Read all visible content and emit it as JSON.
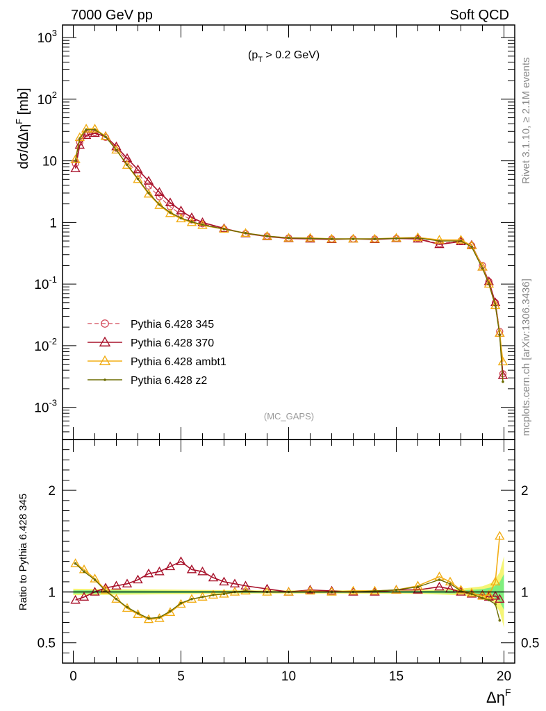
{
  "header": {
    "left": "7000 GeV pp",
    "right": "Soft QCD",
    "cut": "(p_T > 0.2 GeV)",
    "watermark": "(MC_GAPS)",
    "side_top": "Rivet 3.1.10, ≥ 2.1M events",
    "side_bottom": "mcplots.cern.ch [arXiv:1306.3436]"
  },
  "colors": {
    "p345": "#d24858",
    "p370": "#a8122b",
    "ambt1": "#f2ad15",
    "z2": "#6c6c00",
    "band_yellow": "#f5f575",
    "band_green": "#7fef7f"
  },
  "chart_data": [
    {
      "type": "line",
      "panel": "main",
      "ylabel": "dσ/dΔη^F [mb]",
      "yscale": "log",
      "ylim": [
        0.0003,
        1600
      ],
      "xlim": [
        -0.5,
        20.5
      ],
      "yticks": [
        "10^-3",
        "10^-2",
        "10^-1",
        "1",
        "10",
        "10^2",
        "10^3"
      ],
      "series": [
        {
          "name": "Pythia 6.428 345",
          "x": [
            0.1,
            0.3,
            0.6,
            1.0,
            1.5,
            2.0,
            2.5,
            3.0,
            3.5,
            4.0,
            4.5,
            5.0,
            5.5,
            6.0,
            7.0,
            8.0,
            9.0,
            10.0,
            11.0,
            12.0,
            13.0,
            14.0,
            15.0,
            16.0,
            17.0,
            18.0,
            18.5,
            19.0,
            19.3,
            19.6,
            19.8,
            19.95
          ],
          "y": [
            9,
            20,
            28,
            29,
            24,
            16,
            10,
            6.2,
            3.9,
            2.6,
            1.8,
            1.35,
            1.1,
            0.95,
            0.78,
            0.66,
            0.6,
            0.56,
            0.55,
            0.54,
            0.54,
            0.54,
            0.55,
            0.55,
            0.45,
            0.5,
            0.42,
            0.2,
            0.11,
            0.05,
            0.017,
            0.0035
          ]
        },
        {
          "name": "Pythia 6.428 370",
          "x": [
            0.1,
            0.3,
            0.6,
            1.0,
            1.5,
            2.0,
            2.5,
            3.0,
            3.5,
            4.0,
            4.5,
            5.0,
            5.5,
            6.0,
            7.0,
            8.0,
            9.0,
            10.0,
            11.0,
            12.0,
            13.0,
            14.0,
            15.0,
            16.0,
            17.0,
            18.0,
            18.5,
            19.0,
            19.3,
            19.6,
            19.8,
            19.95
          ],
          "y": [
            7.5,
            18,
            26,
            28,
            25,
            17,
            11,
            7.2,
            4.7,
            3.1,
            2.1,
            1.55,
            1.2,
            1.0,
            0.8,
            0.66,
            0.59,
            0.55,
            0.54,
            0.53,
            0.54,
            0.53,
            0.55,
            0.54,
            0.44,
            0.49,
            0.43,
            0.19,
            0.11,
            0.05,
            0.016,
            0.0033
          ]
        },
        {
          "name": "Pythia 6.428 ambt1",
          "x": [
            0.1,
            0.3,
            0.6,
            1.0,
            1.5,
            2.0,
            2.5,
            3.0,
            3.5,
            4.0,
            4.5,
            5.0,
            5.5,
            6.0,
            7.0,
            8.0,
            9.0,
            10.0,
            11.0,
            12.0,
            13.0,
            14.0,
            15.0,
            16.0,
            17.0,
            18.0,
            18.5,
            19.0,
            19.3,
            19.6,
            19.8,
            19.95
          ],
          "y": [
            10.5,
            24,
            33,
            33,
            25,
            15,
            8.5,
            5.0,
            2.9,
            1.9,
            1.4,
            1.15,
            1.0,
            0.9,
            0.78,
            0.67,
            0.6,
            0.56,
            0.56,
            0.54,
            0.54,
            0.54,
            0.56,
            0.57,
            0.52,
            0.52,
            0.42,
            0.19,
            0.1,
            0.045,
            0.016,
            0.0055
          ]
        },
        {
          "name": "Pythia 6.428 z2",
          "x": [
            0.1,
            0.3,
            0.6,
            1.0,
            1.5,
            2.0,
            2.5,
            3.0,
            3.5,
            4.0,
            4.5,
            5.0,
            5.5,
            6.0,
            7.0,
            8.0,
            9.0,
            10.0,
            11.0,
            12.0,
            13.0,
            14.0,
            15.0,
            16.0,
            17.0,
            18.0,
            18.5,
            19.0,
            19.3,
            19.6,
            19.8,
            19.95
          ],
          "y": [
            10,
            23,
            32,
            32,
            24.5,
            15,
            8.6,
            5.1,
            3.0,
            1.95,
            1.45,
            1.18,
            1.02,
            0.92,
            0.78,
            0.67,
            0.6,
            0.56,
            0.55,
            0.54,
            0.54,
            0.54,
            0.55,
            0.56,
            0.5,
            0.5,
            0.4,
            0.18,
            0.1,
            0.045,
            0.015,
            0.0026
          ]
        }
      ]
    },
    {
      "type": "line",
      "panel": "ratio",
      "ylabel": "Ratio to Pythia 6.428 345",
      "xlabel": "Δη^F",
      "ylim": [
        0.3,
        2.5
      ],
      "xlim": [
        -0.5,
        20.5
      ],
      "xticks": [
        0,
        5,
        10,
        15,
        20
      ],
      "yticks": [
        0.5,
        1,
        2
      ],
      "series": [
        {
          "name": "Pythia 6.428 370",
          "x": [
            0.1,
            0.5,
            1.0,
            1.5,
            2.0,
            2.5,
            3.0,
            3.5,
            4.0,
            4.5,
            5.0,
            5.5,
            6.0,
            6.5,
            7.0,
            7.5,
            8.0,
            9.0,
            10.0,
            11.0,
            12.0,
            13.0,
            14.0,
            15.0,
            16.0,
            17.0,
            17.5,
            18.0,
            18.5,
            19.0,
            19.3,
            19.6,
            19.8
          ],
          "y": [
            0.92,
            0.95,
            1.0,
            1.04,
            1.06,
            1.08,
            1.12,
            1.18,
            1.2,
            1.25,
            1.3,
            1.22,
            1.2,
            1.14,
            1.1,
            1.08,
            1.06,
            1.03,
            1.0,
            1.02,
            1.01,
            1.0,
            1.0,
            1.02,
            1.02,
            1.05,
            1.03,
            1.0,
            0.98,
            0.97,
            0.95,
            0.96,
            0.93
          ]
        },
        {
          "name": "Pythia 6.428 ambt1",
          "x": [
            0.1,
            0.5,
            1.0,
            1.5,
            2.0,
            2.5,
            3.0,
            3.5,
            4.0,
            4.5,
            5.0,
            5.5,
            6.0,
            6.5,
            7.0,
            7.5,
            8.0,
            9.0,
            10.0,
            11.0,
            12.0,
            13.0,
            14.0,
            15.0,
            16.0,
            17.0,
            17.5,
            18.0,
            18.5,
            19.0,
            19.3,
            19.6,
            19.8
          ],
          "y": [
            1.28,
            1.22,
            1.13,
            1.02,
            0.93,
            0.84,
            0.78,
            0.73,
            0.74,
            0.8,
            0.88,
            0.93,
            0.95,
            0.97,
            0.98,
            1.0,
            1.01,
            1.0,
            1.0,
            1.01,
            1.0,
            1.01,
            1.01,
            1.02,
            1.06,
            1.15,
            1.1,
            1.02,
            0.99,
            0.96,
            0.97,
            1.1,
            1.55
          ]
        },
        {
          "name": "Pythia 6.428 z2",
          "x": [
            0.1,
            0.5,
            1.0,
            1.5,
            2.0,
            2.5,
            3.0,
            3.5,
            4.0,
            4.5,
            5.0,
            5.5,
            6.0,
            6.5,
            7.0,
            7.5,
            8.0,
            9.0,
            10.0,
            11.0,
            12.0,
            13.0,
            14.0,
            15.0,
            16.0,
            17.0,
            17.5,
            18.0,
            18.5,
            19.0,
            19.3,
            19.6,
            19.8
          ],
          "y": [
            1.28,
            1.2,
            1.12,
            1.01,
            0.93,
            0.85,
            0.79,
            0.74,
            0.75,
            0.81,
            0.89,
            0.93,
            0.95,
            0.97,
            0.98,
            1.0,
            1.01,
            1.0,
            1.0,
            1.0,
            1.0,
            1.0,
            1.01,
            1.02,
            1.05,
            1.12,
            1.08,
            1.01,
            0.98,
            0.94,
            0.92,
            0.88,
            0.72
          ]
        }
      ]
    }
  ]
}
